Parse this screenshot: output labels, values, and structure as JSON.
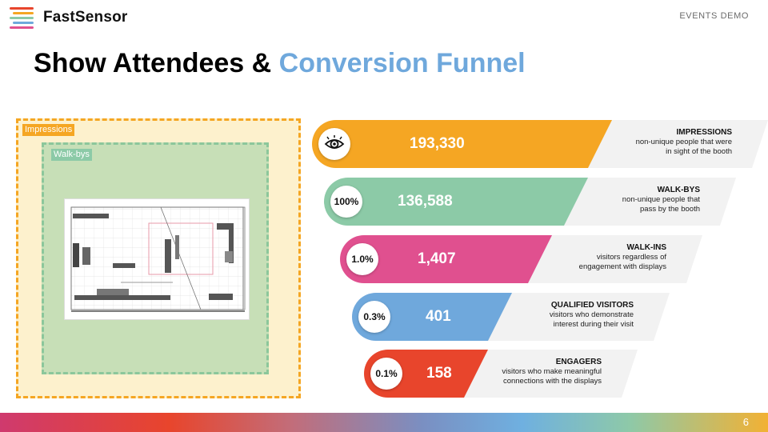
{
  "header": {
    "logo_text": "FastSensor",
    "tag": "EVENTS DEMO"
  },
  "title": {
    "part1": "Show Attendees & ",
    "part2": "Conversion Funnel"
  },
  "zones": {
    "impressions_label": "Impressions",
    "walkbys_label": "Walk-bys"
  },
  "colors": {
    "impressions": "#f5a623",
    "walkbys": "#8ccaa7",
    "walkins": "#e0508f",
    "qualified": "#6fa8dc",
    "engagers": "#e8452c"
  },
  "funnel": [
    {
      "badge": "",
      "badge_icon": "eye-icon",
      "value": "193,330",
      "title": "IMPRESSIONS",
      "line1": "non-unique people that were",
      "line2": "in sight of the booth"
    },
    {
      "badge": "100%",
      "value": "136,588",
      "title": "WALK-BYS",
      "line1": "non-unique people that",
      "line2": "pass by the booth"
    },
    {
      "badge": "1.0%",
      "value": "1,407",
      "title": "WALK-INS",
      "line1": "visitors regardless of",
      "line2": "engagement with displays"
    },
    {
      "badge": "0.3%",
      "value": "401",
      "title": "QUALIFIED VISITORS",
      "line1": "visitors who demonstrate",
      "line2": "interest during their visit"
    },
    {
      "badge": "0.1%",
      "value": "158",
      "title": "ENGAGERS",
      "line1": "visitors who make meaningful",
      "line2": "connections with the displays"
    }
  ],
  "footer": {
    "page_number": "6"
  }
}
